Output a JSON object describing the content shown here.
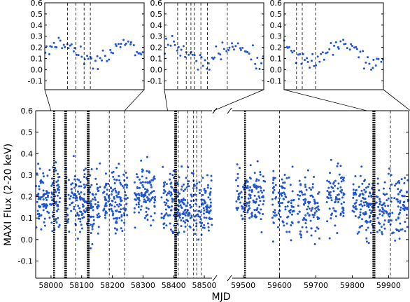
{
  "chart_data": {
    "type": "scatter",
    "main": {
      "xlabel": "MJD",
      "ylabel": "MAXI Flux (2-20 keV)",
      "ylim": [
        -0.18,
        0.6
      ],
      "y_ticks": [
        "-0.1",
        "0.0",
        "0.1",
        "0.2",
        "0.3",
        "0.4",
        "0.5",
        "0.6"
      ],
      "y_tick_values": [
        -0.1,
        0.0,
        0.1,
        0.2,
        0.3,
        0.4,
        0.5,
        0.6
      ],
      "left_segment": {
        "xlim": [
          57950,
          58525
        ],
        "x_ticks": [
          "58000",
          "58100",
          "58200",
          "58300",
          "58400",
          "58500"
        ],
        "x_tick_values": [
          58000,
          58100,
          58200,
          58300,
          58400,
          58500
        ],
        "observing_seasons": [
          [
            57950,
            58030
          ],
          [
            58045,
            58160
          ],
          [
            58170,
            58250
          ],
          [
            58270,
            58340
          ],
          [
            58360,
            58525
          ]
        ],
        "dotted_markers": [
          58010,
          58046,
          58049,
          58120,
          58123,
          58405,
          58408
        ],
        "dashed_markers": [
          58080,
          58190,
          58240,
          58415,
          58445,
          58465,
          58475,
          58490
        ]
      },
      "right_segment": {
        "xlim": [
          59470,
          59955
        ],
        "x_ticks": [
          "59500",
          "59600",
          "59700",
          "59800",
          "59900"
        ],
        "x_tick_values": [
          59500,
          59600,
          59700,
          59800,
          59900
        ],
        "observing_seasons": [
          [
            59480,
            59560
          ],
          [
            59580,
            59640
          ],
          [
            59650,
            59710
          ],
          [
            59730,
            59780
          ],
          [
            59800,
            59955
          ]
        ],
        "dotted_markers": [
          59505,
          59858,
          59861
        ],
        "dashed_markers": [
          59600,
          59905
        ]
      }
    },
    "insets": [
      {
        "ylim": [
          -0.18,
          0.6
        ],
        "y_ticks": [
          "-0.1",
          "0.0",
          "0.1",
          "0.2",
          "0.3",
          "0.4",
          "0.5",
          "0.6"
        ],
        "y_tick_values": [
          -0.1,
          0.0,
          0.1,
          0.2,
          0.3,
          0.4,
          0.5,
          0.6
        ],
        "xlim": [
          58000,
          58240
        ],
        "dashed_markers": [
          58055,
          58075,
          58095,
          58110
        ]
      },
      {
        "ylim": [
          -0.18,
          0.6
        ],
        "y_ticks": [
          "-0.1",
          "0.0",
          "0.1",
          "0.2",
          "0.3",
          "0.4",
          "0.5",
          "0.6"
        ],
        "y_tick_values": [
          -0.1,
          0.0,
          0.1,
          0.2,
          0.3,
          0.4,
          0.5,
          0.6
        ],
        "xlim": [
          58380,
          58530
        ],
        "dashed_markers": [
          58400,
          58413,
          58420,
          58425,
          58435,
          58445,
          58475
        ]
      },
      {
        "ylim": [
          -0.18,
          0.6
        ],
        "y_ticks": [
          "-0.1",
          "0.0",
          "0.1",
          "0.2",
          "0.3",
          "0.4",
          "0.5",
          "0.6"
        ],
        "y_tick_values": [
          -0.1,
          0.0,
          0.1,
          0.2,
          0.3,
          0.4,
          0.5,
          0.6
        ],
        "xlim": [
          59840,
          59960
        ],
        "dashed_markers": [
          59855,
          59862,
          59878
        ]
      }
    ],
    "point_color": "#1f55d4",
    "marker_color": "#000000"
  }
}
